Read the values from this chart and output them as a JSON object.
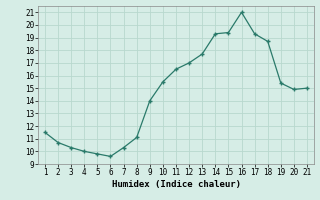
{
  "x": [
    1,
    2,
    3,
    4,
    5,
    6,
    7,
    8,
    9,
    10,
    11,
    12,
    13,
    14,
    15,
    16,
    17,
    18,
    19,
    20,
    21
  ],
  "y": [
    11.5,
    10.7,
    10.3,
    10.0,
    9.8,
    9.6,
    10.3,
    11.1,
    14.0,
    15.5,
    16.5,
    17.0,
    17.7,
    19.3,
    19.4,
    21.0,
    19.3,
    18.7,
    15.4,
    14.9,
    15.0
  ],
  "line_color": "#2a7a6a",
  "marker": "+",
  "marker_color": "#2a7a6a",
  "bg_color": "#d6ede6",
  "grid_color": "#b8d8ce",
  "xlabel": "Humidex (Indice chaleur)",
  "xlim": [
    0.5,
    21.5
  ],
  "ylim": [
    9.0,
    21.5
  ],
  "yticks": [
    9,
    10,
    11,
    12,
    13,
    14,
    15,
    16,
    17,
    18,
    19,
    20,
    21
  ],
  "xticks": [
    1,
    2,
    3,
    4,
    5,
    6,
    7,
    8,
    9,
    10,
    11,
    12,
    13,
    14,
    15,
    16,
    17,
    18,
    19,
    20,
    21
  ],
  "tick_fontsize": 5.5,
  "xlabel_fontsize": 6.5
}
